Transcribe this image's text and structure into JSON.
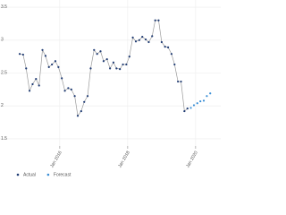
{
  "chart_data": {
    "type": "line",
    "series": [
      {
        "name": "Actual",
        "color": "#1f3b73",
        "line_color": "#9a9a9a",
        "x": [
          2014.82,
          2014.92,
          2015.01,
          2015.11,
          2015.2,
          2015.3,
          2015.39,
          2015.49,
          2015.58,
          2015.68,
          2015.77,
          2015.87,
          2015.96,
          2016.06,
          2016.15,
          2016.25,
          2016.34,
          2016.44,
          2016.53,
          2016.63,
          2016.72,
          2016.82,
          2016.91,
          2017.01,
          2017.1,
          2017.2,
          2017.29,
          2017.39,
          2017.48,
          2017.58,
          2017.67,
          2017.77,
          2017.86,
          2017.96,
          2018.05,
          2018.15,
          2018.24,
          2018.34,
          2018.43,
          2018.53,
          2018.62,
          2018.72,
          2018.81,
          2018.91,
          2019.0,
          2019.1,
          2019.19,
          2019.29,
          2019.38,
          2019.48,
          2019.57,
          2019.67,
          2019.76
        ],
        "values": [
          2.79,
          2.78,
          2.57,
          2.23,
          2.33,
          2.41,
          2.31,
          2.85,
          2.76,
          2.59,
          2.63,
          2.68,
          2.59,
          2.42,
          2.23,
          2.27,
          2.25,
          2.15,
          1.85,
          1.92,
          2.06,
          2.15,
          2.57,
          2.85,
          2.79,
          2.83,
          2.68,
          2.71,
          2.57,
          2.66,
          2.57,
          2.56,
          2.63,
          2.63,
          2.75,
          3.04,
          2.98,
          3.0,
          3.05,
          3.01,
          2.97,
          3.06,
          3.3,
          3.3,
          2.97,
          2.9,
          2.89,
          2.79,
          2.63,
          2.37,
          2.37,
          1.92,
          1.96
        ]
      },
      {
        "name": "Forecast",
        "color": "#3a8fd6",
        "x": [
          2019.86,
          2019.95,
          2020.05,
          2020.14,
          2020.24,
          2020.33,
          2020.43
        ],
        "values": [
          1.97,
          2.01,
          2.04,
          2.07,
          2.08,
          2.15,
          2.19
        ]
      }
    ],
    "xlim": [
      2014.24,
      2020.74
    ],
    "ylim": [
      1.39,
      3.61
    ],
    "xticks": [
      {
        "value": 2016,
        "label": "Jan 2016"
      },
      {
        "value": 2018,
        "label": "Jan 2018"
      },
      {
        "value": 2020,
        "label": "Jan 2020"
      }
    ],
    "yticks": [
      1.5,
      2,
      2.5,
      3,
      3.5
    ],
    "grid": true
  }
}
